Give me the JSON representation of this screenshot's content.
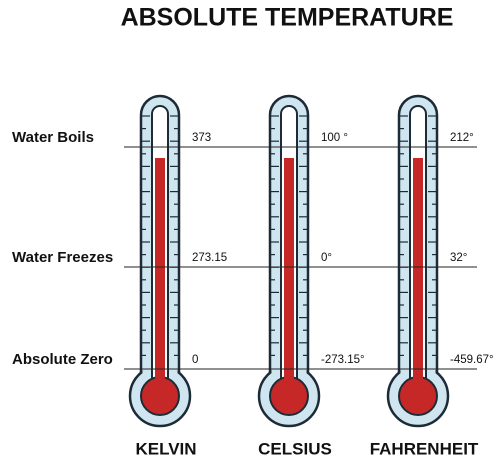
{
  "title": "ABSOLUTE TEMPERATURE",
  "rows": [
    "Water Boils",
    "Water Freezes",
    "Absolute Zero"
  ],
  "thermometers": [
    {
      "name": "KELVIN",
      "labels": [
        "373",
        "273.15",
        "0"
      ]
    },
    {
      "name": "CELSIUS",
      "labels": [
        "100 °",
        "0°",
        "-273.15°"
      ]
    },
    {
      "name": "FAHRENHEIT",
      "labels": [
        "212°",
        "32°",
        "-459.67°"
      ]
    }
  ]
}
